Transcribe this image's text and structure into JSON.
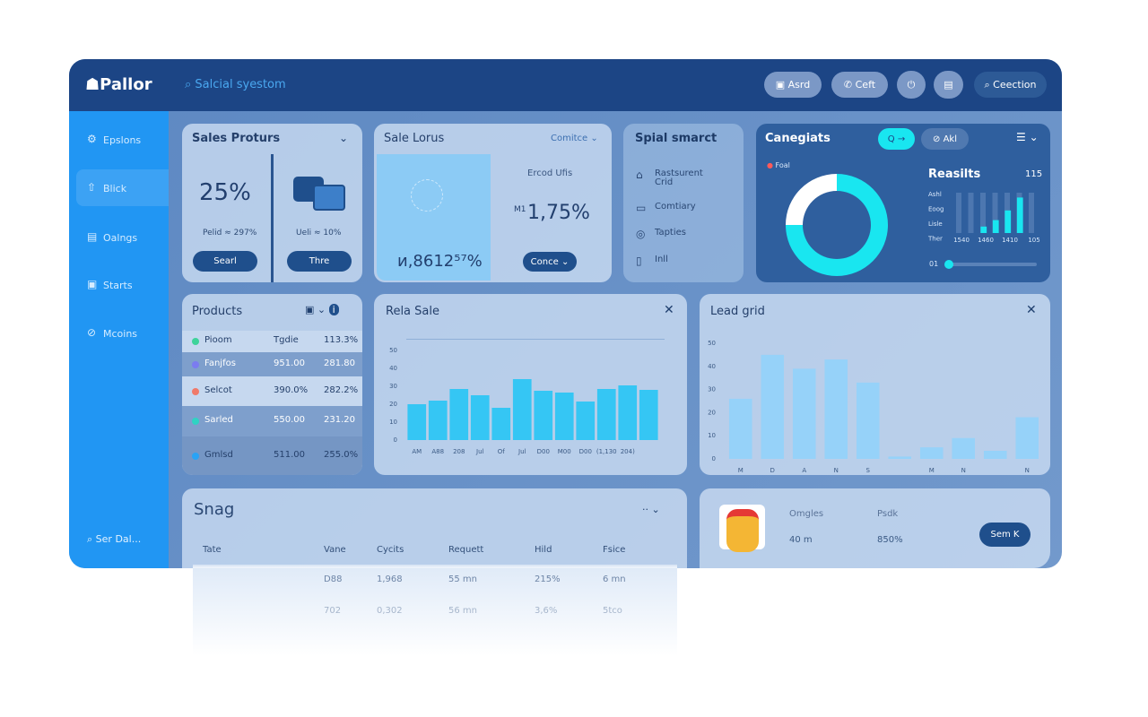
{
  "header": {
    "brand": "Pallor",
    "search": "Salcial syestom",
    "actions": [
      "Asrd",
      "Ceft"
    ],
    "search_right": "Ceection"
  },
  "sidebar": {
    "items": [
      "Epslons",
      "Blick",
      "Oalngs",
      "Starts",
      "Mcoins"
    ],
    "footer": "Ser Dal..."
  },
  "sales_proturs": {
    "title": "Sales Proturs",
    "value": "25%",
    "left_note": "Pelid ≈ 297%",
    "left_button": "Searl",
    "right_note": "Ueli ≈ 10%",
    "right_button": "Thre"
  },
  "sale_lorus": {
    "title": "Sale Lorus",
    "dropdown": "Comitce",
    "caption": "Ercod Ufis",
    "prefix": "M1",
    "value": "1,75%",
    "footer_value": "ᴎ,8612⁵⁷%",
    "button": "Conce"
  },
  "spial_smarct": {
    "title": "Spial smarct",
    "items": [
      "Rastsurent Crid",
      "Comtiary",
      "Tapties",
      "Inll"
    ]
  },
  "canegiats": {
    "title": "Canegiats",
    "chips": [
      "Q →",
      "Akl"
    ],
    "legend": "Foal",
    "donut": {
      "type": "pie",
      "values": [
        75,
        25
      ],
      "colors": [
        "#19e6f0",
        "#ffffff"
      ]
    },
    "results": {
      "type": "bar",
      "title": "Reasilts",
      "total": "115",
      "rows": [
        "Ashl",
        "Eoog",
        "Lisle",
        "Ther"
      ],
      "categories": [
        "1540",
        "1460",
        "1410",
        "105"
      ],
      "values": [
        8,
        16,
        28,
        44
      ],
      "ylim": [
        0,
        50
      ],
      "color": "#19e6f0",
      "slider_label": "01"
    }
  },
  "products": {
    "title": "Products",
    "rows": [
      [
        "Pioom",
        "Tgdie",
        "113.3%"
      ],
      [
        "Fanjfos",
        "951.00",
        "281.80"
      ],
      [
        "Selcot",
        "390.0%",
        "282.2%"
      ],
      [
        "Sarled",
        "550.00",
        "231.20"
      ],
      [
        "Gmlsd",
        "511.00",
        "255.0%"
      ]
    ]
  },
  "rela_sale": {
    "type": "bar",
    "title": "Rela Sale",
    "categories": [
      "AM",
      "A88",
      "208",
      "Jul",
      "Of",
      "Jul",
      "D00",
      "M00",
      "D00",
      "(1,130",
      "204)",
      null
    ],
    "values": [
      20,
      22,
      28.5,
      25,
      18,
      34,
      27.5,
      26.5,
      21.5,
      28.5,
      30.5,
      28
    ],
    "ylim": [
      0,
      50
    ],
    "yticks": [
      0,
      10,
      20,
      30,
      40,
      50
    ],
    "color": "#35c6f4",
    "grid": false
  },
  "lead_grid": {
    "type": "bar",
    "title": "Lead grid",
    "categories": [
      "M",
      "D",
      "A",
      "N",
      "S",
      null,
      "M",
      "N",
      null,
      "N"
    ],
    "values": [
      26,
      45,
      39,
      43,
      33,
      1,
      5,
      9,
      3.5,
      18
    ],
    "ylim": [
      0,
      50
    ],
    "yticks": [
      0,
      10,
      20,
      30,
      40,
      50
    ],
    "color": "#8fd2fb",
    "grid": false
  },
  "snag": {
    "title": "Snag",
    "headers": [
      "Tate",
      "Vane",
      "Cycits",
      "Requett",
      "Hild",
      "Fsice"
    ],
    "rows": [
      [
        "D88",
        "1,968",
        "55 mn",
        "215%",
        "6 mn"
      ],
      [
        "702",
        "0,302",
        "56 mn",
        "3,6%",
        "5tco"
      ]
    ]
  },
  "promo": {
    "label_a": "Omgles",
    "label_b": "Psdk",
    "value_a": "40 m",
    "value_b": "850%",
    "button": "Sem K"
  }
}
